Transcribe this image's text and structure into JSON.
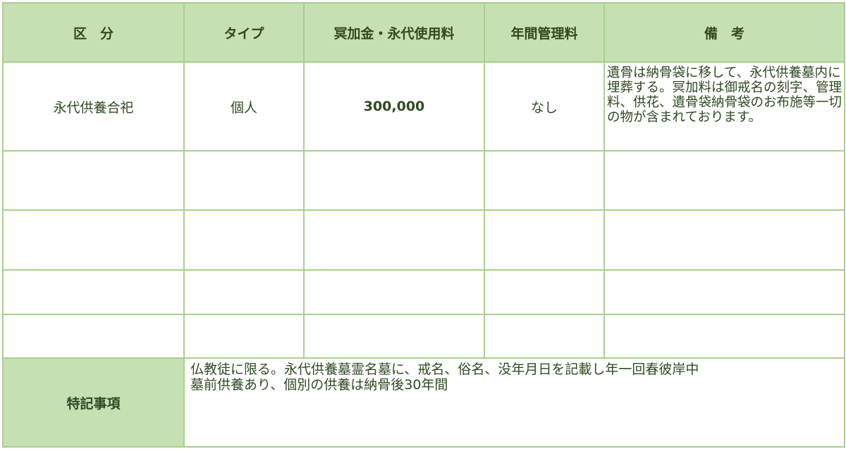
{
  "header": {
    "columns": [
      "区　分",
      "タイプ",
      "冥加金・永代使用料",
      "年間管理料",
      "備　考"
    ]
  },
  "rows": [
    {
      "category": "永代供養合祀",
      "type": "個人",
      "fee": "300,000",
      "annual": "なし",
      "remarks": "遺骨は納骨袋に移して、永代供養墓内に埋葬する。冥加料は御戒名の刻字、管理料、供花、遺骨袋納骨袋のお布施等一切の物が含まれております。"
    },
    {
      "category": "",
      "type": "",
      "fee": "",
      "annual": "",
      "remarks": ""
    },
    {
      "category": "",
      "type": "",
      "fee": "",
      "annual": "",
      "remarks": ""
    },
    {
      "category": "",
      "type": "",
      "fee": "",
      "annual": "",
      "remarks": ""
    },
    {
      "category": "",
      "type": "",
      "fee": "",
      "annual": "",
      "remarks": ""
    }
  ],
  "special": {
    "label": "特記事項",
    "line1": "仏教徒に限る。永代供養墓霊名墓に、戒名、俗名、没年月日を記載し年一回春彼岸中",
    "line2": "墓前供養あり、個別の供養は納骨後30年間"
  },
  "colors": {
    "header_bg": "#c6e0b4",
    "border": "#a8cf8e",
    "text": "#2f4a22"
  }
}
